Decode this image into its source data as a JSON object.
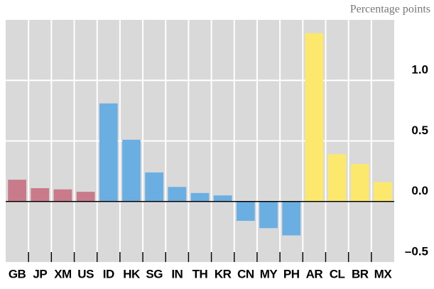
{
  "chart_data": {
    "type": "bar",
    "unit_label": "Percentage points",
    "categories": [
      "GB",
      "JP",
      "XM",
      "US",
      "ID",
      "HK",
      "SG",
      "IN",
      "TH",
      "KR",
      "CN",
      "MY",
      "PH",
      "AR",
      "CL",
      "BR",
      "MX"
    ],
    "values": [
      0.18,
      0.11,
      0.1,
      0.08,
      0.81,
      0.51,
      0.24,
      0.12,
      0.07,
      0.05,
      -0.16,
      -0.22,
      -0.28,
      1.39,
      0.39,
      0.31,
      0.16
    ],
    "colors": [
      "#c97b8b",
      "#c97b8b",
      "#c97b8b",
      "#c97b8b",
      "#6aaee2",
      "#6aaee2",
      "#6aaee2",
      "#6aaee2",
      "#6aaee2",
      "#6aaee2",
      "#6aaee2",
      "#6aaee2",
      "#6aaee2",
      "#fde86e",
      "#fde86e",
      "#fde86e",
      "#fde86e"
    ],
    "ylim": [
      -0.5,
      1.5
    ],
    "yticks": [
      {
        "value": -0.5,
        "label": "–0.5"
      },
      {
        "value": 0,
        "label": "0.0"
      },
      0.5,
      {
        "value": 1,
        "label": "1.0"
      }
    ],
    "grid": true
  }
}
